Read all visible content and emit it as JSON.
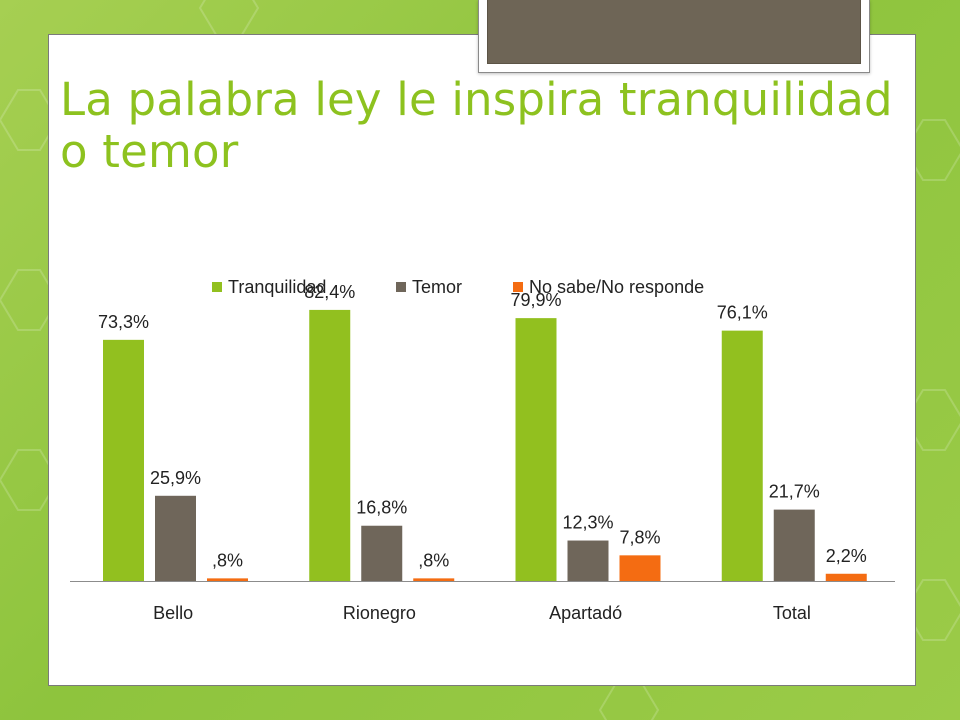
{
  "slide": {
    "title": "La palabra ley le inspira tranquilidad o temor"
  },
  "colors": {
    "background": "#9bcb48",
    "title": "#8dc21f",
    "tab": "#6e6556"
  },
  "chart_data": {
    "type": "bar",
    "title": "",
    "xlabel": "",
    "ylabel": "",
    "categories": [
      "Bello",
      "Rionegro",
      "Apartadó",
      "Total"
    ],
    "series": [
      {
        "name": "Tranquilidad",
        "color": "#92c01f",
        "values": [
          73.3,
          82.4,
          79.9,
          76.1
        ],
        "labels": [
          "73,3%",
          "82,4%",
          "79,9%",
          "76,1%"
        ]
      },
      {
        "name": "Temor",
        "color": "#6f665a",
        "values": [
          25.9,
          16.8,
          12.3,
          21.7
        ],
        "labels": [
          "25,9%",
          "16,8%",
          "12,3%",
          "21,7%"
        ]
      },
      {
        "name": "No sabe/No responde",
        "color": "#f46c12",
        "values": [
          0.8,
          0.8,
          7.8,
          2.2
        ],
        "labels": [
          ",8%",
          ",8%",
          "7,8%",
          "2,2%"
        ]
      }
    ],
    "ylim": [
      0,
      100
    ],
    "grid": false,
    "legend": "top"
  }
}
